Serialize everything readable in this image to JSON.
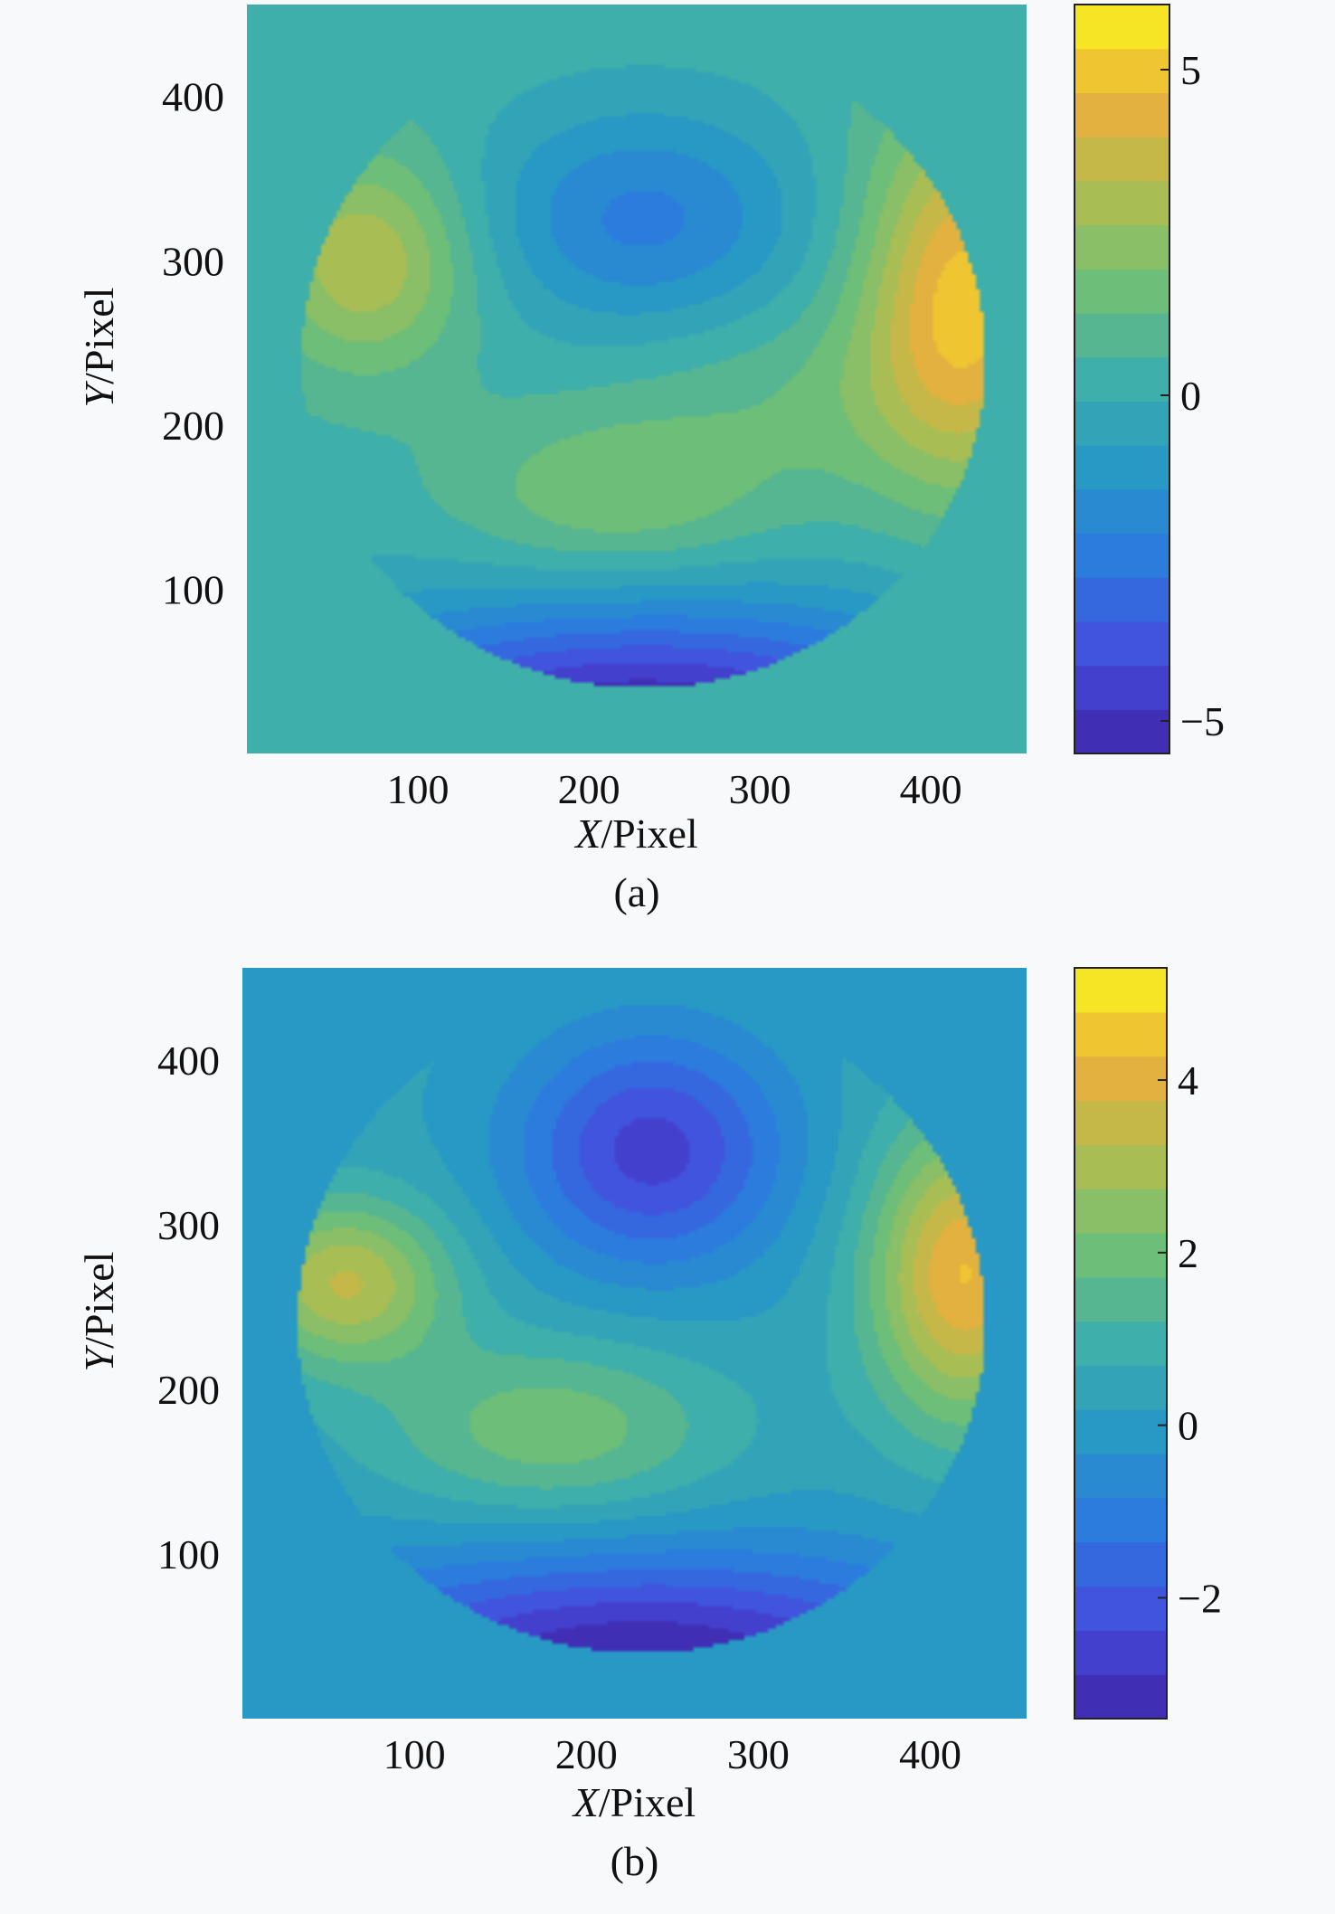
{
  "chart_data": [
    {
      "type": "heatmap",
      "panel_label": "(a)",
      "xlabel_italic": "X",
      "xlabel_rest": "/Pixel",
      "ylabel_italic": "Y",
      "ylabel_rest": "/Pixel",
      "xlim": [
        0,
        456
      ],
      "ylim": [
        0,
        456
      ],
      "xticks": [
        100,
        200,
        300,
        400
      ],
      "xtick_labels": [
        "100",
        "200",
        "300",
        "400"
      ],
      "yticks": [
        100,
        200,
        300,
        400
      ],
      "ytick_labels": [
        "100",
        "200",
        "300",
        "400"
      ],
      "colorbar": {
        "range": [
          -5.5,
          6
        ],
        "ticks": [
          -5,
          0,
          5
        ],
        "tick_labels": [
          "−5",
          "0",
          "5"
        ],
        "levels": 17
      },
      "background_value": 0,
      "aperture": {
        "center_x": 232,
        "center_y": 240,
        "radius": 200
      },
      "features": [
        {
          "x": 232,
          "y": 325,
          "value": -2.6,
          "sx": 95,
          "sy": 68
        },
        {
          "x": 420,
          "y": 280,
          "value": 4.6,
          "sx": 60,
          "sy": 110
        },
        {
          "x": 70,
          "y": 300,
          "value": 3.0,
          "sx": 60,
          "sy": 65
        },
        {
          "x": 215,
          "y": 155,
          "value": 1.6,
          "sx": 90,
          "sy": 50
        },
        {
          "x": 330,
          "y": 215,
          "value": 0.9,
          "sx": 120,
          "sy": 60
        },
        {
          "x": 232,
          "y": 15,
          "value": -6.0,
          "sx": 210,
          "sy": 75
        }
      ]
    },
    {
      "type": "heatmap",
      "panel_label": "(b)",
      "xlabel_italic": "X",
      "xlabel_rest": "/Pixel",
      "ylabel_italic": "Y",
      "ylabel_rest": "/Pixel",
      "xlim": [
        0,
        456
      ],
      "ylim": [
        0,
        456
      ],
      "xticks": [
        100,
        200,
        300,
        400
      ],
      "xtick_labels": [
        "100",
        "200",
        "300",
        "400"
      ],
      "yticks": [
        100,
        200,
        300,
        400
      ],
      "ytick_labels": [
        "100",
        "200",
        "300",
        "400"
      ],
      "colorbar": {
        "range": [
          -3.4,
          5.3
        ],
        "ticks": [
          -2,
          0,
          2,
          4
        ],
        "tick_labels": [
          "−2",
          "0",
          "2",
          "4"
        ],
        "levels": 17
      },
      "background_value": 0,
      "aperture": {
        "center_x": 232,
        "center_y": 240,
        "radius": 200
      },
      "features": [
        {
          "x": 238,
          "y": 345,
          "value": -2.9,
          "sx": 78,
          "sy": 72
        },
        {
          "x": 420,
          "y": 270,
          "value": 4.0,
          "sx": 55,
          "sy": 90
        },
        {
          "x": 60,
          "y": 265,
          "value": 3.0,
          "sx": 60,
          "sy": 50
        },
        {
          "x": 180,
          "y": 175,
          "value": 1.8,
          "sx": 100,
          "sy": 55
        },
        {
          "x": 232,
          "y": 30,
          "value": -3.8,
          "sx": 210,
          "sy": 70
        }
      ]
    }
  ]
}
